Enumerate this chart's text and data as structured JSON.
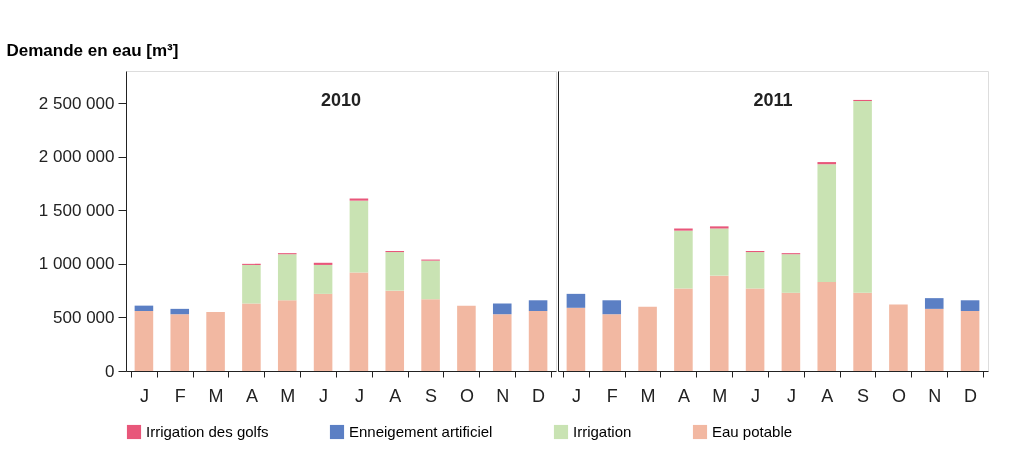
{
  "chart_data": [
    {
      "type": "bar",
      "title": "2010",
      "ylabel": "Demande en eau [m³]",
      "stacked": true,
      "legend": "bottom",
      "grid": false,
      "categories": [
        "J",
        "F",
        "M",
        "A",
        "M",
        "J",
        "J",
        "A",
        "S",
        "O",
        "N",
        "D"
      ],
      "ylim": [
        0,
        2800000
      ],
      "yticks": [
        0,
        {
          "value": 500000,
          "label": "500 000"
        },
        {
          "value": 1000000,
          "label": "1 000 000"
        },
        {
          "value": 1500000,
          "label": "1 500 000"
        },
        {
          "value": 2000000,
          "label": "2 000 000"
        },
        {
          "value": 2500000,
          "label": "2 500 000"
        }
      ],
      "series": [
        {
          "name": "Eau potable",
          "color": "#f2b8a2",
          "values": [
            560000,
            530000,
            550000,
            630000,
            660000,
            720000,
            920000,
            750000,
            670000,
            610000,
            530000,
            560000
          ]
        },
        {
          "name": "Irrigation",
          "color": "#c9e3b3",
          "values": [
            null,
            null,
            null,
            360000,
            430000,
            270000,
            670000,
            360000,
            360000,
            null,
            null,
            null
          ]
        },
        {
          "name": "Enneigement artificiel",
          "color": "#5b7fc4",
          "values": [
            50000,
            50000,
            null,
            null,
            null,
            null,
            null,
            null,
            null,
            null,
            100000,
            100000
          ]
        },
        {
          "name": "Irrigation des golfs",
          "color": "#e8577a",
          "values": [
            null,
            null,
            null,
            10000,
            10000,
            20000,
            20000,
            10000,
            10000,
            null,
            null,
            null
          ]
        }
      ]
    },
    {
      "type": "bar",
      "title": "2011",
      "stacked": true,
      "grid": false,
      "tick_labels": "x",
      "categories": [
        "J",
        "F",
        "M",
        "A",
        "M",
        "J",
        "J",
        "A",
        "S",
        "O",
        "N",
        "D"
      ],
      "ylim": [
        0,
        2800000
      ],
      "series": [
        {
          "color": "#f2b8a2",
          "values": [
            590000,
            530000,
            600000,
            770000,
            890000,
            770000,
            730000,
            830000,
            730000,
            620000,
            580000,
            560000
          ]
        },
        {
          "color": "#c9e3b3",
          "values": [
            null,
            null,
            null,
            540000,
            440000,
            340000,
            360000,
            1100000,
            1790000,
            null,
            null,
            null
          ]
        },
        {
          "color": "#5b7fc4",
          "values": [
            130000,
            130000,
            null,
            null,
            null,
            null,
            null,
            null,
            null,
            null,
            100000,
            100000
          ]
        },
        {
          "color": "#e8577a",
          "values": [
            null,
            null,
            null,
            20000,
            20000,
            10000,
            10000,
            20000,
            10000,
            null,
            null,
            null
          ]
        }
      ]
    }
  ]
}
